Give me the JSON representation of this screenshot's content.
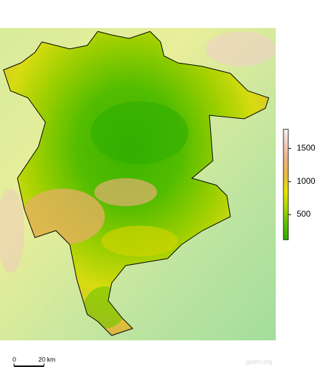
{
  "legend": {
    "type": "colorbar",
    "range": [
      120,
      1790
    ],
    "ticks": [
      500,
      1000,
      1500
    ],
    "colors": [
      "#2fae00",
      "#5cc000",
      "#a6d400",
      "#e6e600",
      "#e9bd3a",
      "#ecb17a",
      "#f2c9bb",
      "#f2f2f2"
    ]
  },
  "scale_bar": {
    "labels": [
      "0",
      "20 km"
    ]
  },
  "credit": "gadm.org"
}
